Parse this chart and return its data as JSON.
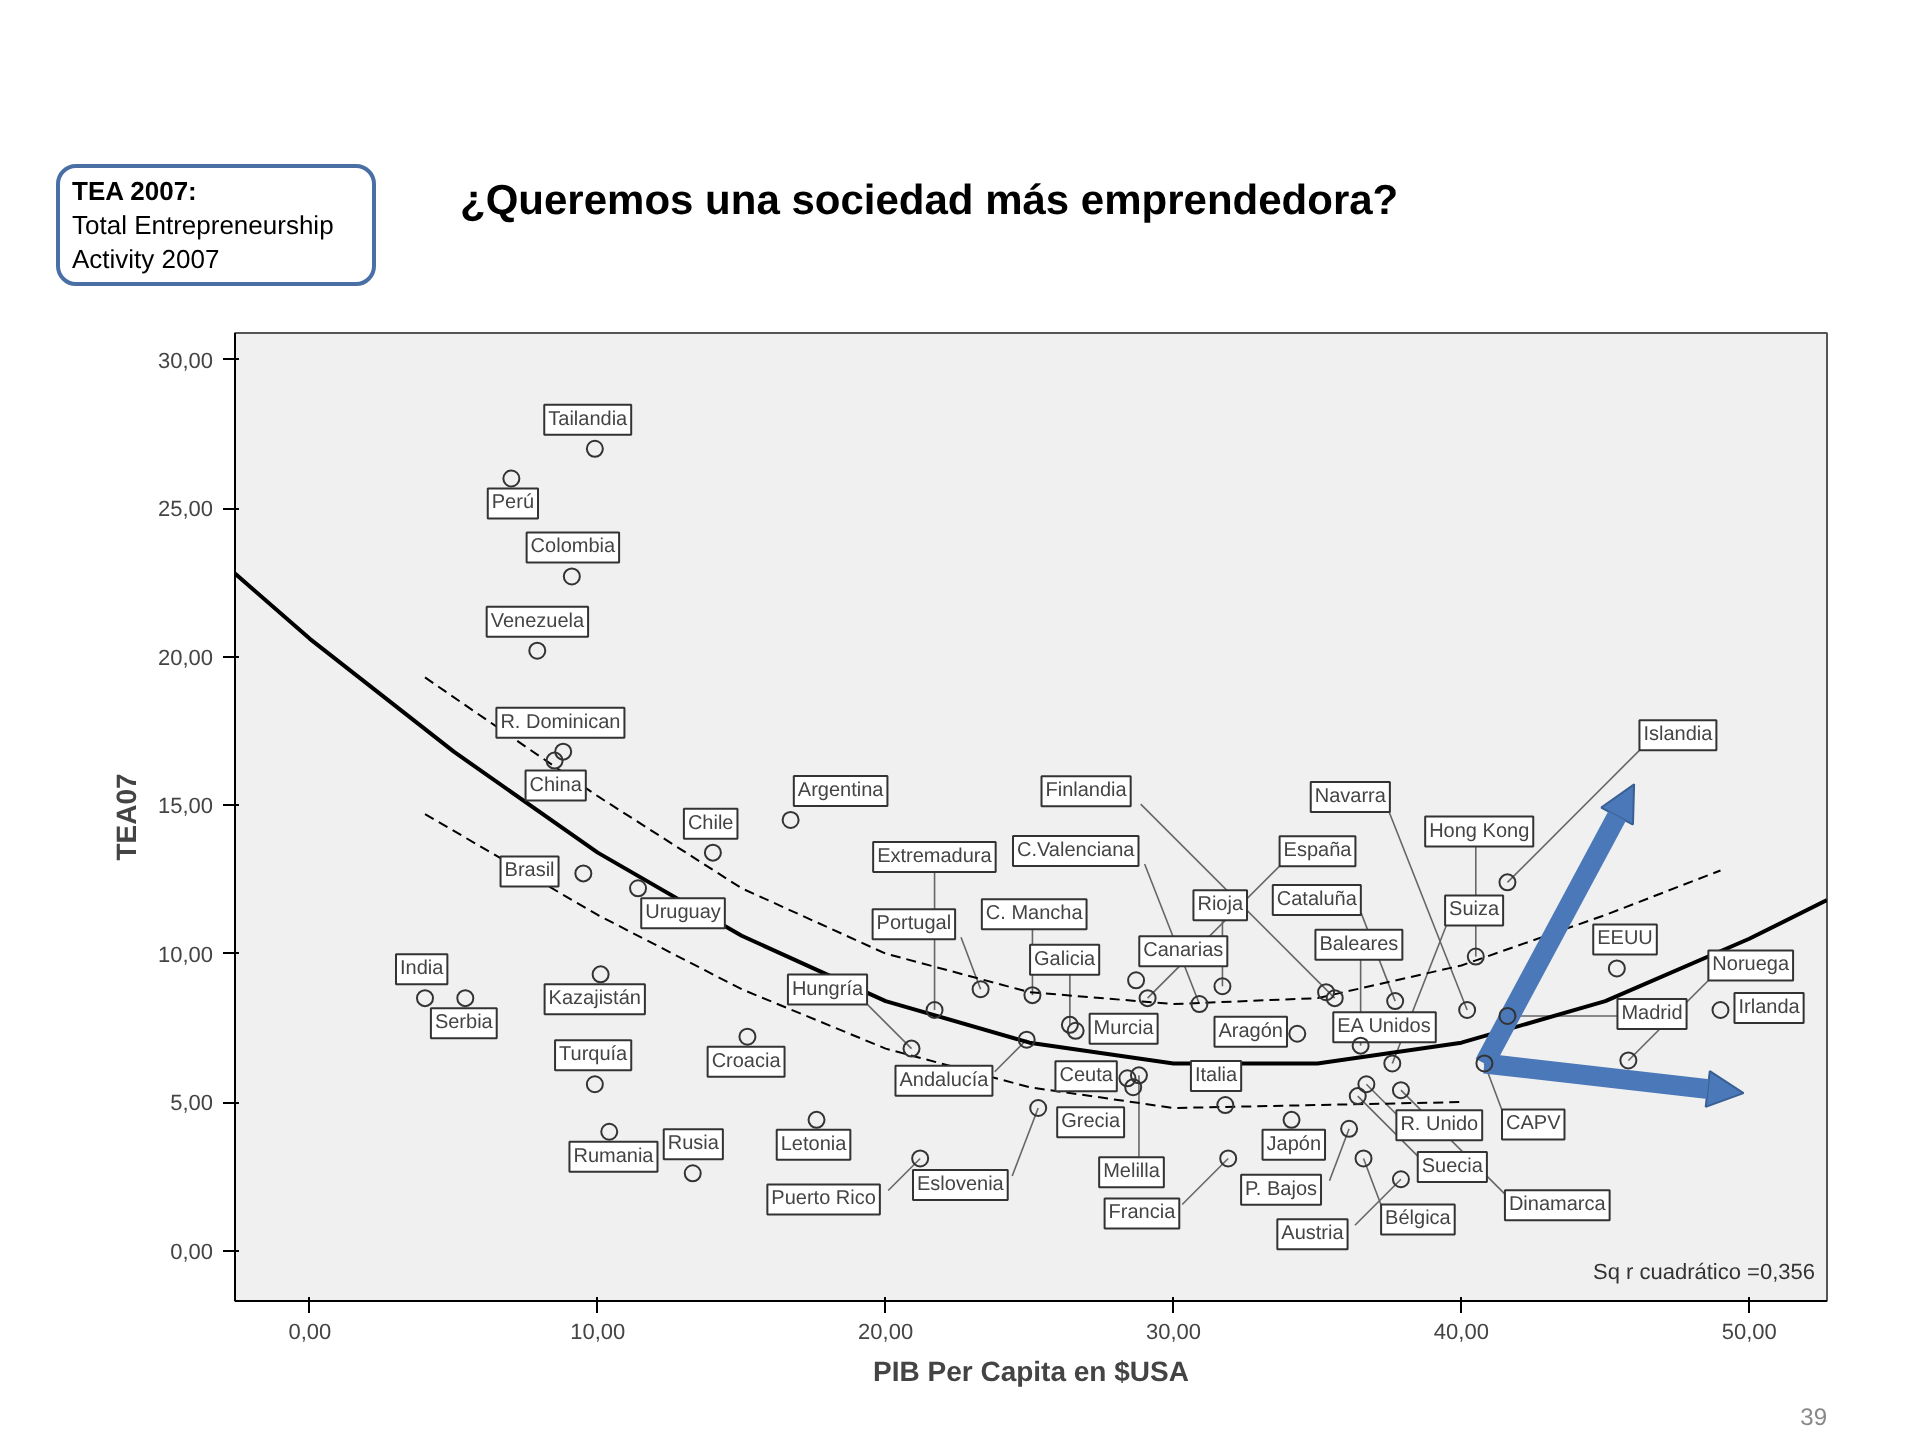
{
  "chart_data": {
    "type": "scatter",
    "title": "¿Queremos una sociedad más emprendedora?",
    "xlabel": "PIB Per Capita en $USA",
    "ylabel": "TEA07",
    "xlim": [
      -2.6,
      52.7
    ],
    "ylim": [
      -1.7,
      30.9
    ],
    "xticks": [
      {
        "value": 0,
        "label": "0,00"
      },
      {
        "value": 10,
        "label": "10,00"
      },
      {
        "value": 20,
        "label": "20,00"
      },
      {
        "value": 30,
        "label": "30,00"
      },
      {
        "value": 40,
        "label": "40,00"
      },
      {
        "value": 50,
        "label": "50,00"
      }
    ],
    "yticks": [
      {
        "value": 0,
        "label": "0,00"
      },
      {
        "value": 5,
        "label": "5,00"
      },
      {
        "value": 10,
        "label": "10,00"
      },
      {
        "value": 15,
        "label": "15,00"
      },
      {
        "value": 20,
        "label": "20,00"
      },
      {
        "value": 25,
        "label": "25,00"
      },
      {
        "value": 30,
        "label": "30,00"
      }
    ],
    "grid": false,
    "series": [
      {
        "color": "#333333",
        "marker": "circle",
        "x": [
          9.9,
          7.0,
          9.1,
          7.9,
          8.5,
          8.8,
          16.7,
          14.0,
          9.5,
          11.4,
          10.1,
          4.0,
          5.4,
          9.9,
          10.4,
          13.3,
          15.2,
          17.6,
          21.7,
          23.3,
          20.9,
          24.9,
          21.2,
          25.3,
          25.1,
          26.4,
          26.6,
          28.7,
          29.1,
          30.9,
          28.4,
          28.6,
          31.8,
          31.9,
          28.8,
          31.7,
          34.3,
          34.1,
          36.6,
          36.1,
          37.9,
          36.4,
          37.9,
          37.6,
          36.7,
          35.6,
          35.3,
          36.5,
          37.7,
          40.2,
          40.5,
          41.6,
          40.8,
          41.6,
          45.4,
          49.0,
          45.8
        ],
        "values": [
          27.0,
          26.0,
          22.7,
          20.2,
          16.5,
          16.8,
          14.5,
          13.4,
          12.7,
          12.2,
          9.3,
          8.5,
          8.5,
          5.6,
          4.0,
          2.6,
          7.2,
          4.4,
          8.1,
          8.8,
          6.8,
          7.1,
          3.1,
          4.8,
          8.6,
          7.6,
          7.4,
          9.1,
          8.5,
          8.3,
          5.8,
          5.5,
          4.9,
          3.1,
          5.9,
          8.9,
          7.3,
          4.4,
          3.1,
          4.1,
          2.4,
          5.2,
          5.4,
          6.3,
          5.6,
          8.5,
          8.7,
          6.9,
          8.4,
          8.1,
          9.9,
          7.9,
          6.3,
          12.4,
          9.5,
          8.1,
          6.4
        ]
      },
      {
        "type": "line",
        "color": "#000000",
        "line_style": "solid",
        "x": [
          -2.6,
          0,
          5,
          10,
          15,
          20,
          25,
          30,
          35,
          40,
          45,
          50,
          52.7
        ],
        "values": [
          22.8,
          20.6,
          16.8,
          13.4,
          10.6,
          8.4,
          7.0,
          6.3,
          6.3,
          7.0,
          8.4,
          10.5,
          11.8
        ]
      },
      {
        "type": "line",
        "color": "#000000",
        "line_style": "dashed",
        "x": [
          4,
          10,
          15,
          20,
          25,
          30,
          35,
          40,
          45,
          49
        ],
        "values": [
          19.3,
          15.3,
          12.2,
          10.0,
          8.7,
          8.3,
          8.5,
          9.6,
          11.3,
          12.8
        ]
      },
      {
        "type": "line",
        "color": "#000000",
        "line_style": "dashed",
        "x": [
          4,
          10,
          15,
          20,
          25,
          30,
          35,
          40
        ],
        "values": [
          14.7,
          11.3,
          8.8,
          6.8,
          5.5,
          4.8,
          4.9,
          5.0
        ]
      }
    ],
    "annotations": [
      "TEA 2007:\nTotal Entrepreneurship\nActivity 2007",
      "Sq r cuadrático =0,356",
      "39",
      {
        "text": "Tailandia",
        "x": 9.9,
        "y": 27.0
      },
      {
        "text": "Perú",
        "x": 7.0,
        "y": 26.0
      },
      {
        "text": "Colombia",
        "x": 9.1,
        "y": 22.7
      },
      {
        "text": "Venezuela",
        "x": 7.9,
        "y": 20.2
      },
      {
        "text": "China",
        "x": 8.5,
        "y": 16.5
      },
      {
        "text": "R. Dominican",
        "x": 8.8,
        "y": 16.8
      },
      {
        "text": "Argentina",
        "x": 16.7,
        "y": 14.5
      },
      {
        "text": "Chile",
        "x": 14.0,
        "y": 13.4
      },
      {
        "text": "Brasil",
        "x": 9.5,
        "y": 12.7
      },
      {
        "text": "Uruguay",
        "x": 11.4,
        "y": 12.2
      },
      {
        "text": "Kazajistán",
        "x": 10.1,
        "y": 9.3
      },
      {
        "text": "India",
        "x": 4.0,
        "y": 8.5
      },
      {
        "text": "Serbia",
        "x": 5.4,
        "y": 8.5
      },
      {
        "text": "Turquía",
        "x": 9.9,
        "y": 5.6
      },
      {
        "text": "Rumania",
        "x": 10.4,
        "y": 4.0
      },
      {
        "text": "Rusia",
        "x": 13.3,
        "y": 2.6
      },
      {
        "text": "Croacia",
        "x": 15.2,
        "y": 7.2
      },
      {
        "text": "Letonia",
        "x": 17.6,
        "y": 4.4
      },
      {
        "text": "Extremadura",
        "x": 21.7,
        "y": 8.1
      },
      {
        "text": "Portugal",
        "x": 23.3,
        "y": 8.8
      },
      {
        "text": "Hungría",
        "x": 20.9,
        "y": 6.8
      },
      {
        "text": "Andalucía",
        "x": 24.9,
        "y": 7.1
      },
      {
        "text": "Puerto Rico",
        "x": 21.2,
        "y": 3.1
      },
      {
        "text": "Eslovenia",
        "x": 25.3,
        "y": 4.8
      },
      {
        "text": "C. Mancha",
        "x": 25.1,
        "y": 8.6
      },
      {
        "text": "Galicia",
        "x": 26.4,
        "y": 7.6
      },
      {
        "text": "Murcia",
        "x": 26.6,
        "y": 7.4
      },
      {
        "text": "Canarias",
        "x": 28.7,
        "y": 9.1
      },
      {
        "text": "España",
        "x": 29.1,
        "y": 8.5
      },
      {
        "text": "C.Valenciana",
        "x": 30.9,
        "y": 8.3
      },
      {
        "text": "Ceuta",
        "x": 28.4,
        "y": 5.8
      },
      {
        "text": "Grecia",
        "x": 28.6,
        "y": 5.5
      },
      {
        "text": "Italia",
        "x": 31.8,
        "y": 4.9
      },
      {
        "text": "Francia",
        "x": 31.9,
        "y": 3.1
      },
      {
        "text": "Melilla",
        "x": 28.8,
        "y": 5.9
      },
      {
        "text": "Rioja",
        "x": 31.7,
        "y": 8.9
      },
      {
        "text": "Aragón",
        "x": 34.3,
        "y": 7.3
      },
      {
        "text": "Japón",
        "x": 34.1,
        "y": 4.4
      },
      {
        "text": "Bélgica",
        "x": 36.6,
        "y": 3.1
      },
      {
        "text": "P. Bajos",
        "x": 36.1,
        "y": 4.1
      },
      {
        "text": "Austria",
        "x": 37.9,
        "y": 2.4
      },
      {
        "text": "Suecia",
        "x": 36.4,
        "y": 5.2
      },
      {
        "text": "Dinamarca",
        "x": 37.9,
        "y": 5.4
      },
      {
        "text": "Suiza",
        "x": 37.6,
        "y": 6.3
      },
      {
        "text": "R. Unido",
        "x": 36.7,
        "y": 5.6
      },
      {
        "text": "Finlandia",
        "x": 35.6,
        "y": 8.5
      },
      {
        "text": "EA Unidos",
        "x": 35.3,
        "y": 8.7
      },
      {
        "text": "Baleares",
        "x": 36.5,
        "y": 6.9
      },
      {
        "text": "Cataluña",
        "x": 37.7,
        "y": 8.4
      },
      {
        "text": "Navarra",
        "x": 40.2,
        "y": 8.1
      },
      {
        "text": "Hong Kong",
        "x": 40.5,
        "y": 9.9
      },
      {
        "text": "Madrid",
        "x": 41.6,
        "y": 7.9
      },
      {
        "text": "CAPV",
        "x": 40.8,
        "y": 6.3
      },
      {
        "text": "Islandia",
        "x": 41.6,
        "y": 12.4
      },
      {
        "text": "EEUU",
        "x": 45.4,
        "y": 9.5
      },
      {
        "text": "Irlanda",
        "x": 49.0,
        "y": 8.1
      },
      {
        "text": "Noruega",
        "x": 45.8,
        "y": 6.4
      }
    ]
  }
}
